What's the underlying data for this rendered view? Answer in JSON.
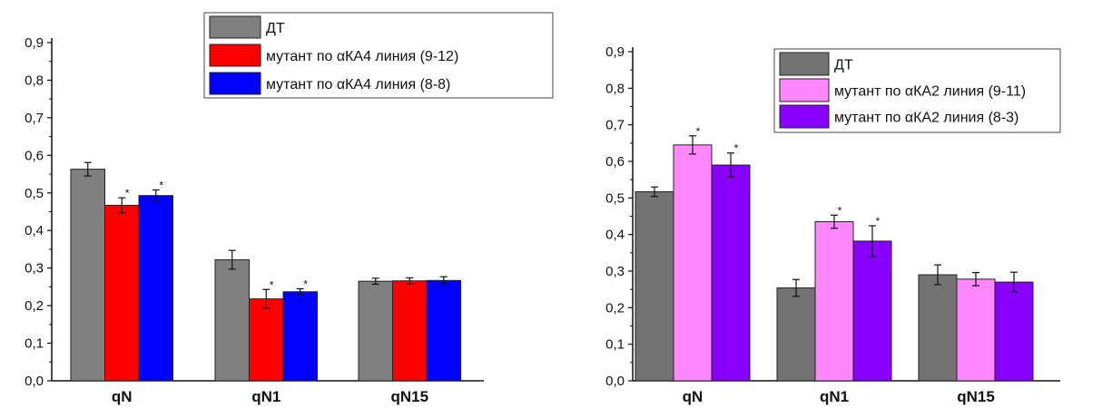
{
  "chart_data": [
    {
      "type": "bar",
      "categories": [
        "qN",
        "qN1",
        "qN15"
      ],
      "ylim": [
        0,
        0.9
      ],
      "yticks": [
        "0,0",
        "0,1",
        "0,2",
        "0,3",
        "0,4",
        "0,5",
        "0,6",
        "0,7",
        "0,8",
        "0,9"
      ],
      "grid": false,
      "legend_position": "top-right",
      "series": [
        {
          "name": "ДТ",
          "color": "#808080",
          "values": [
            0.563,
            0.322,
            0.265
          ],
          "errors": [
            0.018,
            0.025,
            0.008
          ],
          "significant": [
            false,
            false,
            false
          ]
        },
        {
          "name": "мутант по αКА4 линия (9-12)",
          "color": "#ff0000",
          "values": [
            0.467,
            0.218,
            0.266
          ],
          "errors": [
            0.02,
            0.025,
            0.008
          ],
          "significant": [
            true,
            true,
            false
          ]
        },
        {
          "name": "мутант по αКА4 линия (8-8)",
          "color": "#0000ff",
          "values": [
            0.493,
            0.237,
            0.267
          ],
          "errors": [
            0.015,
            0.008,
            0.01
          ],
          "significant": [
            true,
            true,
            false
          ]
        }
      ],
      "significance_marker": "*"
    },
    {
      "type": "bar",
      "categories": [
        "qN",
        "qN1",
        "qN15"
      ],
      "ylim": [
        0,
        0.9
      ],
      "yticks": [
        "0,0",
        "0,1",
        "0,2",
        "0,3",
        "0,4",
        "0,5",
        "0,6",
        "0,7",
        "0,8",
        "0,9"
      ],
      "grid": false,
      "legend_position": "top-right",
      "series": [
        {
          "name": "ДТ",
          "color": "#737373",
          "values": [
            0.517,
            0.254,
            0.29
          ],
          "errors": [
            0.013,
            0.023,
            0.027
          ],
          "significant": [
            false,
            false,
            false
          ]
        },
        {
          "name": "мутант по αКА2 линия (9-11)",
          "color": "#ff88ff",
          "values": [
            0.645,
            0.435,
            0.278
          ],
          "errors": [
            0.025,
            0.018,
            0.018
          ],
          "significant": [
            true,
            true,
            false
          ]
        },
        {
          "name": "мутант по αКА2 линия (8-3)",
          "color": "#8800ff",
          "values": [
            0.59,
            0.382,
            0.27
          ],
          "errors": [
            0.033,
            0.042,
            0.027
          ],
          "significant": [
            true,
            true,
            false
          ]
        }
      ],
      "significance_marker": "*"
    }
  ]
}
